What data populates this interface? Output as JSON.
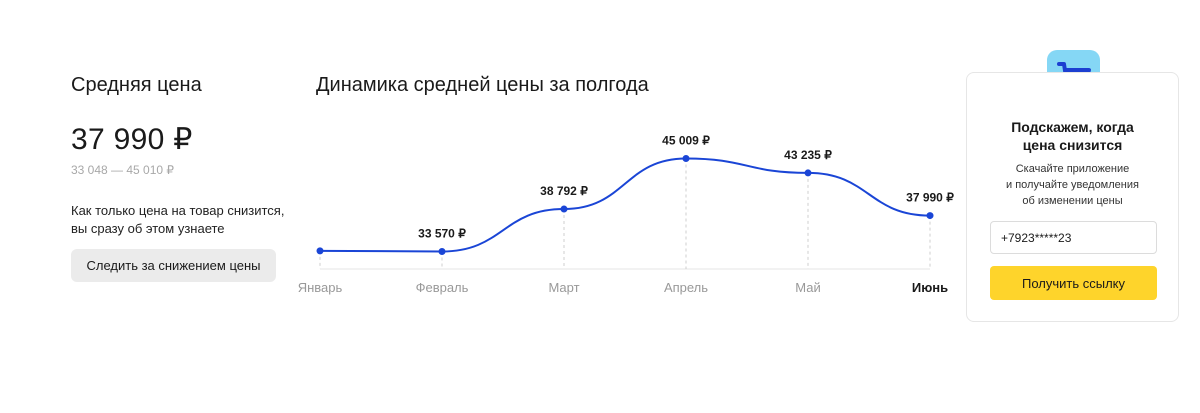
{
  "average": {
    "title": "Средняя цена",
    "price": "37 990 ₽",
    "range": "33 048 — 45 010 ₽",
    "notice_line1": "Как только цена на товар снизится,",
    "notice_line2": "вы сразу об этом узнаете",
    "track_button": "Следить за снижением цены"
  },
  "dynamics": {
    "title": "Динамика средней цены за полгода"
  },
  "chart_data": {
    "type": "line",
    "categories": [
      "Январь",
      "Февраль",
      "Март",
      "Апрель",
      "Май",
      "Июнь"
    ],
    "values": [
      33650,
      33570,
      38792,
      45009,
      43235,
      37990
    ],
    "data_labels": [
      "",
      "33 570 ₽",
      "38 792 ₽",
      "45 009 ₽",
      "43 235 ₽",
      "37 990 ₽"
    ],
    "ylim": [
      30000,
      47000
    ],
    "active_category": "Июнь",
    "line_color": "#1a45d6",
    "grid": false
  },
  "promo": {
    "icon": "shopping-cart-icon",
    "title_line1": "Подскажем, когда",
    "title_line2": "цена снизится",
    "text_line1": "Скачайте приложение",
    "text_line2": "и получайте уведомления",
    "text_line3": "об изменении цены",
    "phone_value": "+7923*****23",
    "button": "Получить ссылку",
    "button_color": "#fed42b",
    "icon_bg": "#85d7f5"
  }
}
